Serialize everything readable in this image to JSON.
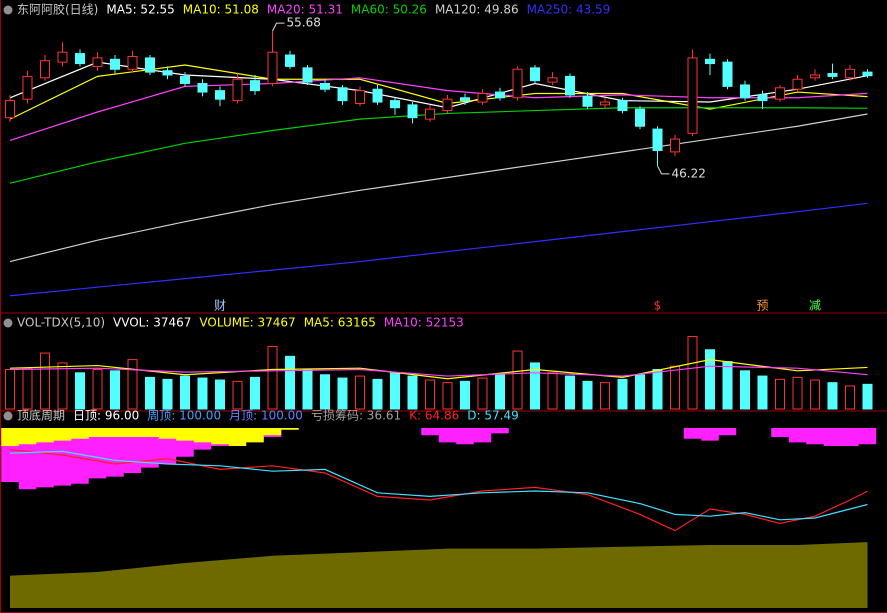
{
  "chart_data": [
    {
      "type": "candlestick",
      "title": "东阿阿胶(日线)",
      "ylim": [
        36.8,
        56.6
      ],
      "up_color": "#ff3232",
      "down_color": "#54ffff",
      "open": [
        49.6,
        50.9,
        52.4,
        53.5,
        54.1,
        53.2,
        53.7,
        53.0,
        53.8,
        52.9,
        52.5,
        52.0,
        51.5,
        50.8,
        52.2,
        52.0,
        54.0,
        53.1,
        52.0,
        51.7,
        50.6,
        51.6,
        50.8,
        50.5,
        49.5,
        50.1,
        51.0,
        50.7,
        51.4,
        51.0,
        53.1,
        52.1,
        52.5,
        51.1,
        50.5,
        50.8,
        50.2,
        48.8,
        47.2,
        48.5,
        53.7,
        53.5,
        51.9,
        51.2,
        50.9,
        51.6,
        52.4,
        52.7,
        52.4,
        52.8
      ],
      "high": [
        51.2,
        52.9,
        54.0,
        54.9,
        54.4,
        54.2,
        54.0,
        54.3,
        54.0,
        53.2,
        52.8,
        52.3,
        51.8,
        52.7,
        52.6,
        55.68,
        54.3,
        53.3,
        52.3,
        51.9,
        51.8,
        51.9,
        51.0,
        50.7,
        50.5,
        51.2,
        51.3,
        51.6,
        51.7,
        53.2,
        53.3,
        52.8,
        52.7,
        51.4,
        51.0,
        51.0,
        50.4,
        49.0,
        48.4,
        54.4,
        54.1,
        53.7,
        52.2,
        51.5,
        51.9,
        52.6,
        53.0,
        53.4,
        53.3,
        53.0
      ],
      "low": [
        49.3,
        50.6,
        52.2,
        53.2,
        53.2,
        52.9,
        52.7,
        52.8,
        52.6,
        52.3,
        51.8,
        51.1,
        50.4,
        50.6,
        51.2,
        51.8,
        53.0,
        51.9,
        51.4,
        50.5,
        50.4,
        50.5,
        49.8,
        49.2,
        49.3,
        49.9,
        50.5,
        50.5,
        50.8,
        50.8,
        52.0,
        51.9,
        51.0,
        50.2,
        50.3,
        49.9,
        48.8,
        46.22,
        46.9,
        48.3,
        52.6,
        51.6,
        50.8,
        50.2,
        50.7,
        51.4,
        52.2,
        52.3,
        52.2,
        52.4
      ],
      "close": [
        50.8,
        52.5,
        53.6,
        54.2,
        53.4,
        53.8,
        53.0,
        53.9,
        52.8,
        52.6,
        52.0,
        51.4,
        50.9,
        52.3,
        51.5,
        54.2,
        53.2,
        52.1,
        51.6,
        50.8,
        51.5,
        50.7,
        50.3,
        49.6,
        50.2,
        50.9,
        50.8,
        51.3,
        51.0,
        53.0,
        52.2,
        52.4,
        51.2,
        50.4,
        50.7,
        50.1,
        49.0,
        47.3,
        48.1,
        53.8,
        53.4,
        51.8,
        51.0,
        50.8,
        51.7,
        52.3,
        52.6,
        52.5,
        53.0,
        52.55
      ],
      "series": [
        {
          "name": "MA5: 52.55",
          "color": "#ffffff",
          "x": [
            0,
            5,
            10,
            15,
            20,
            25,
            30,
            35,
            40,
            45,
            49
          ],
          "values": [
            51.0,
            53.5,
            52.6,
            52.3,
            51.5,
            50.3,
            52.0,
            50.8,
            50.7,
            51.6,
            52.55
          ]
        },
        {
          "name": "MA10: 51.08",
          "color": "#ffff00",
          "x": [
            0,
            5,
            10,
            15,
            20,
            25,
            30,
            35,
            40,
            45,
            49
          ],
          "values": [
            49.5,
            52.5,
            53.3,
            52.3,
            52.3,
            50.6,
            51.3,
            51.3,
            50.2,
            51.4,
            51.08
          ]
        },
        {
          "name": "MA20: 51.31",
          "color": "#ff40ff",
          "x": [
            0,
            5,
            10,
            15,
            20,
            25,
            30,
            35,
            40,
            45,
            49
          ],
          "values": [
            48.0,
            50.0,
            51.8,
            52.0,
            52.4,
            51.5,
            51.0,
            51.2,
            51.0,
            51.0,
            51.31
          ]
        },
        {
          "name": "MA60: 50.26",
          "color": "#00d000",
          "x": [
            0,
            5,
            10,
            15,
            20,
            25,
            30,
            35,
            40,
            45,
            49
          ],
          "values": [
            45.0,
            46.5,
            47.8,
            48.7,
            49.5,
            49.9,
            50.1,
            50.3,
            50.3,
            50.3,
            50.26
          ]
        },
        {
          "name": "MA120: 49.86",
          "color": "#d0d0d0",
          "x": [
            0,
            5,
            10,
            15,
            20,
            25,
            30,
            35,
            40,
            45,
            49
          ],
          "values": [
            39.5,
            41.0,
            42.3,
            43.5,
            44.5,
            45.4,
            46.3,
            47.2,
            48.1,
            49.0,
            49.86
          ]
        },
        {
          "name": "MA250: 43.59",
          "color": "#3030ff",
          "x": [
            0,
            5,
            10,
            15,
            20,
            25,
            30,
            35,
            40,
            45,
            49
          ],
          "values": [
            37.1,
            37.7,
            38.3,
            38.9,
            39.5,
            40.2,
            40.9,
            41.6,
            42.3,
            43.0,
            43.59
          ]
        }
      ],
      "max_label": {
        "x": 15,
        "value": 55.68
      },
      "min_label": {
        "x": 37,
        "value": 46.22
      },
      "markers": [
        {
          "x": 12,
          "text": "财",
          "color": "#a0c8ff"
        },
        {
          "x": 37,
          "text": "$",
          "color": "#ff3030"
        },
        {
          "x": 43,
          "text": "预",
          "color": "#ff9030"
        },
        {
          "x": 46,
          "text": "减",
          "color": "#40ff40"
        }
      ]
    },
    {
      "type": "bar",
      "title": "VOL-TDX(5,10)",
      "ylim": [
        0,
        120000
      ],
      "header": [
        {
          "text": "VVOL: 37467",
          "color": "#ffffff"
        },
        {
          "text": "VOLUME: 37467",
          "color": "#ffff00"
        }
      ],
      "values": [
        60000,
        62000,
        85000,
        70000,
        55000,
        60000,
        58000,
        75000,
        48000,
        45000,
        50000,
        47000,
        44000,
        42000,
        48000,
        95000,
        80000,
        60000,
        52000,
        47000,
        50000,
        45000,
        55000,
        50000,
        44000,
        40000,
        42000,
        47000,
        52000,
        88000,
        70000,
        55000,
        50000,
        42000,
        40000,
        45000,
        52000,
        60000,
        65000,
        110000,
        90000,
        72000,
        58000,
        50000,
        45000,
        48000,
        44000,
        40000,
        35000,
        37467
      ],
      "series": [
        {
          "name": "MA5: 63165",
          "color": "#ffff00",
          "x": [
            0,
            5,
            10,
            15,
            20,
            25,
            30,
            35,
            40,
            45,
            49
          ],
          "values": [
            62000,
            66000,
            52000,
            60000,
            62000,
            46000,
            60000,
            48000,
            75000,
            58000,
            63165
          ]
        },
        {
          "name": "MA10: 52153",
          "color": "#ff40ff",
          "x": [
            0,
            5,
            10,
            15,
            20,
            25,
            30,
            35,
            40,
            45,
            49
          ],
          "values": [
            60000,
            62000,
            56000,
            58000,
            60000,
            50000,
            55000,
            50000,
            65000,
            62000,
            52153
          ]
        }
      ]
    },
    {
      "type": "area",
      "title": "顶底周期",
      "ylim": [
        0,
        100
      ],
      "header": [
        {
          "text": "日顶: 96.00",
          "color": "#ffffff"
        },
        {
          "text": "周顶: 100.00",
          "color": "#40a0ff"
        },
        {
          "text": "月顶: 100.00",
          "color": "#6080ff"
        }
      ],
      "series": [
        {
          "type": "area",
          "base": "top",
          "step": true,
          "color": "#ff20ff",
          "values": [
            70,
            66,
            67,
            68,
            69,
            72,
            73,
            75,
            78,
            80,
            84,
            88,
            90,
            92,
            93,
            95,
            null,
            null,
            null,
            null,
            null,
            null,
            null,
            null,
            96,
            92,
            91,
            92,
            97,
            null,
            null,
            null,
            null,
            null,
            null,
            null,
            null,
            null,
            null,
            94,
            93,
            96,
            null,
            null,
            95,
            92,
            91,
            90,
            90,
            91
          ]
        },
        {
          "type": "area",
          "base": "top",
          "step": true,
          "color": "#ffff00",
          "x": [
            0,
            1,
            2,
            3,
            4,
            5,
            6,
            7,
            8,
            9,
            10,
            11,
            12,
            13,
            14,
            15,
            16
          ],
          "values": [
            90,
            91,
            92,
            93,
            94,
            95,
            95,
            95,
            95,
            94,
            93,
            92,
            91,
            90,
            92,
            96,
            99
          ]
        },
        {
          "name": "亏损筹码: 36.61",
          "label_color": "#a0a0a0",
          "type": "area",
          "base": "bottom",
          "color": "#6e6a00",
          "x": [
            0,
            5,
            10,
            15,
            20,
            25,
            30,
            35,
            40,
            45,
            49
          ],
          "values": [
            18,
            20,
            25,
            29,
            31,
            33,
            33,
            34,
            35,
            35,
            36.61
          ]
        },
        {
          "name": "K: 64.86",
          "type": "line",
          "color": "#ff2020",
          "x": [
            0,
            3,
            6,
            9,
            12,
            15,
            18,
            21,
            24,
            27,
            30,
            33,
            36,
            38,
            40,
            42,
            44,
            46,
            48,
            49
          ],
          "values": [
            88,
            85,
            80,
            83,
            77,
            79,
            75,
            62,
            60,
            65,
            67,
            63,
            52,
            43,
            55,
            52,
            47,
            51,
            60,
            64.86
          ]
        },
        {
          "name": "D: 57.49",
          "type": "line",
          "color": "#40e0ff",
          "x": [
            0,
            3,
            6,
            9,
            12,
            15,
            18,
            21,
            24,
            27,
            30,
            33,
            36,
            38,
            40,
            42,
            44,
            46,
            48,
            49
          ],
          "values": [
            86,
            87,
            82,
            80,
            79,
            76,
            77,
            64,
            62,
            64,
            65,
            64,
            58,
            52,
            51,
            53,
            49,
            50,
            55,
            57.49
          ]
        }
      ]
    }
  ]
}
